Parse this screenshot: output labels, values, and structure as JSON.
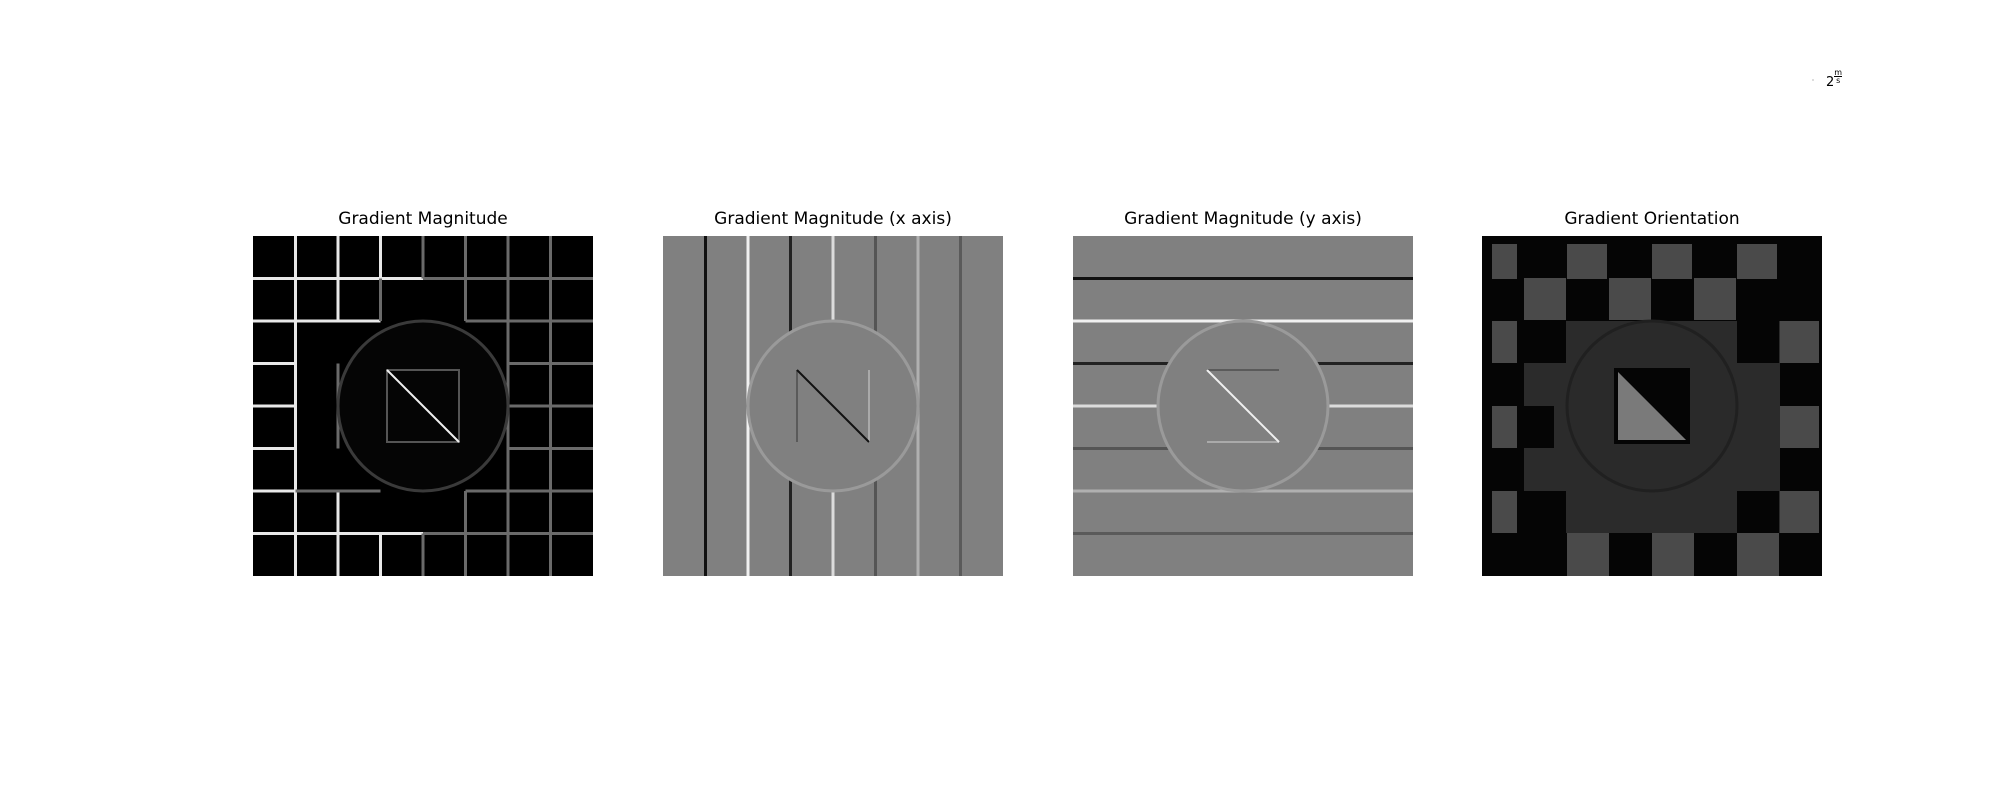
{
  "panels": [
    {
      "title": "Gradient Magnitude"
    },
    {
      "title": "Gradient Magnitude (x axis)"
    },
    {
      "title": "Gradient Magnitude (y axis)"
    },
    {
      "title": "Gradient Orientation"
    }
  ],
  "corner_label": {
    "base": "2",
    "numerator": "m",
    "denominator": "s"
  }
}
